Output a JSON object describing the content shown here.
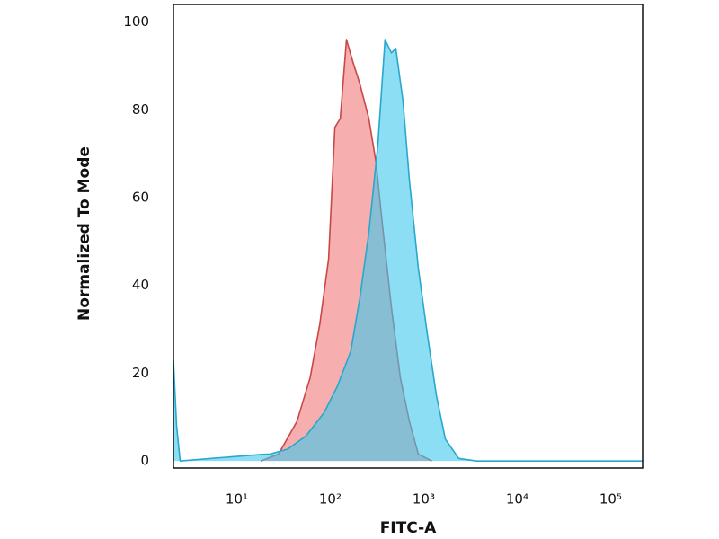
{
  "chart_data": {
    "type": "area",
    "x_label": "FITC-A",
    "y_label": "Normalized To Mode",
    "xscale": "log",
    "xlim": [
      2.1,
      220000
    ],
    "ylim": [
      -1.6,
      104
    ],
    "xticks": [
      {
        "value": 10,
        "label": "10¹"
      },
      {
        "value": 100,
        "label": "10²"
      },
      {
        "value": 1000,
        "label": "10³"
      },
      {
        "value": 10000,
        "label": "10⁴"
      },
      {
        "value": 100000,
        "label": "10⁵"
      }
    ],
    "yticks": [
      0,
      20,
      40,
      60,
      80,
      100
    ],
    "grid": false,
    "series": [
      {
        "color": "#f07878",
        "line_color": "#c84848",
        "x": [
          18,
          28,
          44,
          61,
          77,
          96,
          112,
          128,
          149,
          174,
          207,
          259,
          309,
          361,
          451,
          562,
          702,
          875,
          1222
        ],
        "values": [
          0,
          1.6,
          9,
          19,
          31,
          46,
          76,
          78,
          96,
          91,
          86,
          78,
          68,
          54,
          35,
          19,
          9,
          1.6,
          0
        ]
      },
      {
        "color": "#40c8ec",
        "line_color": "#28a8cc",
        "x": [
          2.1,
          2.27,
          2.48,
          4.8,
          9.4,
          18,
          22.7,
          35,
          55,
          86,
          119,
          166,
          207,
          259,
          323,
          386,
          451,
          503,
          601,
          702,
          875,
          1092,
          1364,
          1702,
          2371,
          3690,
          220000
        ],
        "values": [
          23,
          8,
          0,
          0.5,
          1,
          1.5,
          1.6,
          2.7,
          5.7,
          11,
          17,
          25,
          37,
          52,
          72,
          96,
          93,
          94,
          82,
          64,
          44,
          29,
          15,
          5,
          0.6,
          0,
          0
        ]
      }
    ]
  }
}
